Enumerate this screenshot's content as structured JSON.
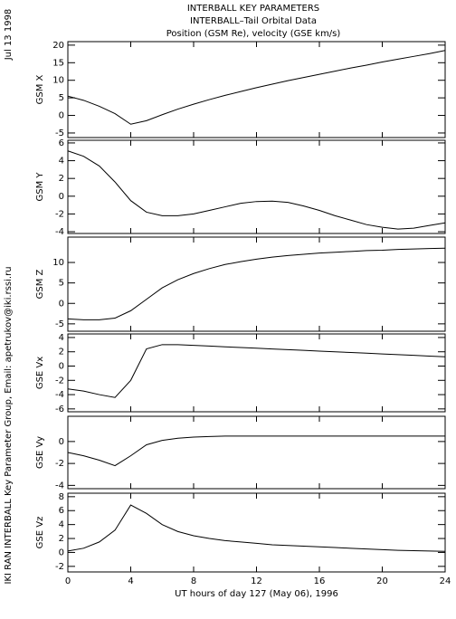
{
  "page": {
    "title_lines": [
      "INTERBALL KEY PARAMETERS",
      "INTERBALL–Tail Orbital Data",
      "Position (GSM Re), velocity (GSE km/s)"
    ],
    "date": "Jul 13 1998",
    "credit": "IKI RAN INTERBALL Key Parameter Group, Email: apetrukov@iki.rssi.ru"
  },
  "chart_data": [
    {
      "type": "line",
      "ylabel": "GSM X",
      "xlim": [
        0,
        24
      ],
      "xticks": [
        0,
        4,
        8,
        12,
        16,
        20,
        24
      ],
      "ylim": [
        -6.3,
        21
      ],
      "yticks": [
        -5,
        0,
        5,
        10,
        15,
        20
      ],
      "x": [
        0,
        1,
        2,
        3,
        4,
        5,
        6,
        7,
        8,
        9,
        10,
        11,
        12,
        13,
        14,
        15,
        16,
        17,
        18,
        19,
        20,
        21,
        22,
        23,
        24
      ],
      "series": [
        {
          "color": "#000000",
          "values": [
            5.5,
            4.3,
            2.6,
            0.5,
            -2.5,
            -1.5,
            0.2,
            1.8,
            3.2,
            4.5,
            5.7,
            6.8,
            7.9,
            8.9,
            9.9,
            10.8,
            11.7,
            12.6,
            13.5,
            14.3,
            15.2,
            16.0,
            16.8,
            17.6,
            18.5
          ]
        }
      ]
    },
    {
      "type": "line",
      "ylabel": "GSM Y",
      "xlim": [
        0,
        24
      ],
      "xticks": [
        0,
        4,
        8,
        12,
        16,
        20,
        24
      ],
      "ylim": [
        -4.2,
        6.3
      ],
      "yticks": [
        -4,
        -2,
        0,
        2,
        4,
        6
      ],
      "x": [
        0,
        1,
        2,
        3,
        4,
        5,
        6,
        7,
        8,
        9,
        10,
        11,
        12,
        13,
        14,
        15,
        16,
        17,
        18,
        19,
        20,
        21,
        22,
        23,
        24
      ],
      "series": [
        {
          "color": "#000000",
          "values": [
            5.1,
            4.5,
            3.4,
            1.6,
            -0.5,
            -1.8,
            -2.2,
            -2.2,
            -2.0,
            -1.6,
            -1.2,
            -0.8,
            -0.6,
            -0.55,
            -0.7,
            -1.1,
            -1.6,
            -2.2,
            -2.7,
            -3.2,
            -3.5,
            -3.7,
            -3.6,
            -3.3,
            -3.0
          ]
        }
      ]
    },
    {
      "type": "line",
      "ylabel": "GSM Z",
      "xlim": [
        0,
        24
      ],
      "xticks": [
        0,
        4,
        8,
        12,
        16,
        20,
        24
      ],
      "ylim": [
        -6.8,
        16.2
      ],
      "yticks": [
        -5,
        0,
        5,
        10
      ],
      "x": [
        0,
        1,
        2,
        3,
        4,
        5,
        6,
        7,
        8,
        9,
        10,
        11,
        12,
        13,
        14,
        15,
        16,
        17,
        18,
        19,
        20,
        21,
        22,
        23,
        24
      ],
      "series": [
        {
          "color": "#000000",
          "values": [
            -3.8,
            -4.0,
            -4.0,
            -3.6,
            -1.8,
            1.0,
            3.8,
            5.8,
            7.3,
            8.5,
            9.5,
            10.2,
            10.8,
            11.3,
            11.7,
            12.0,
            12.3,
            12.5,
            12.7,
            12.9,
            13.0,
            13.2,
            13.3,
            13.4,
            13.5
          ]
        }
      ]
    },
    {
      "type": "line",
      "ylabel": "GSE Vx",
      "xlim": [
        0,
        24
      ],
      "xticks": [
        0,
        4,
        8,
        12,
        16,
        20,
        24
      ],
      "ylim": [
        -6.4,
        4.5
      ],
      "yticks": [
        -6,
        -4,
        -2,
        0,
        2,
        4
      ],
      "x": [
        0,
        1,
        2,
        3,
        4,
        5,
        6,
        7,
        8,
        9,
        10,
        11,
        12,
        13,
        14,
        15,
        16,
        17,
        18,
        19,
        20,
        21,
        22,
        23,
        24
      ],
      "series": [
        {
          "color": "#000000",
          "values": [
            -3.2,
            -3.5,
            -4.0,
            -4.4,
            -2.0,
            2.4,
            3.0,
            3.0,
            2.9,
            2.8,
            2.7,
            2.6,
            2.5,
            2.4,
            2.3,
            2.2,
            2.1,
            2.0,
            1.9,
            1.8,
            1.7,
            1.6,
            1.5,
            1.4,
            1.3
          ]
        }
      ]
    },
    {
      "type": "line",
      "ylabel": "GSE Vy",
      "xlim": [
        0,
        24
      ],
      "xticks": [
        0,
        4,
        8,
        12,
        16,
        20,
        24
      ],
      "ylim": [
        -4.3,
        2.3
      ],
      "yticks": [
        -4,
        -2,
        0
      ],
      "x": [
        0,
        1,
        2,
        3,
        4,
        5,
        6,
        7,
        8,
        9,
        10,
        11,
        12,
        13,
        14,
        15,
        16,
        17,
        18,
        19,
        20,
        21,
        22,
        23,
        24
      ],
      "series": [
        {
          "color": "#000000",
          "values": [
            -1.0,
            -1.3,
            -1.7,
            -2.2,
            -1.3,
            -0.3,
            0.1,
            0.3,
            0.4,
            0.45,
            0.5,
            0.5,
            0.5,
            0.5,
            0.5,
            0.5,
            0.5,
            0.5,
            0.5,
            0.5,
            0.5,
            0.5,
            0.5,
            0.5,
            0.5
          ]
        }
      ]
    },
    {
      "type": "line",
      "ylabel": "GSE Vz",
      "xlabel": "UT hours of day 127 (May 06), 1996",
      "xlim": [
        0,
        24
      ],
      "xticks": [
        0,
        4,
        8,
        12,
        16,
        20,
        24
      ],
      "ylim": [
        -2.8,
        8.5
      ],
      "yticks": [
        -2,
        0,
        2,
        4,
        6,
        8
      ],
      "x": [
        0,
        1,
        2,
        3,
        4,
        5,
        6,
        7,
        8,
        9,
        10,
        11,
        12,
        13,
        14,
        15,
        16,
        17,
        18,
        19,
        20,
        21,
        22,
        23,
        24
      ],
      "series": [
        {
          "color": "#000000",
          "values": [
            0.2,
            0.6,
            1.5,
            3.2,
            6.8,
            5.6,
            4.0,
            3.0,
            2.4,
            2.0,
            1.7,
            1.5,
            1.3,
            1.1,
            1.0,
            0.9,
            0.8,
            0.7,
            0.6,
            0.5,
            0.4,
            0.3,
            0.25,
            0.2,
            0.15
          ]
        }
      ]
    }
  ]
}
